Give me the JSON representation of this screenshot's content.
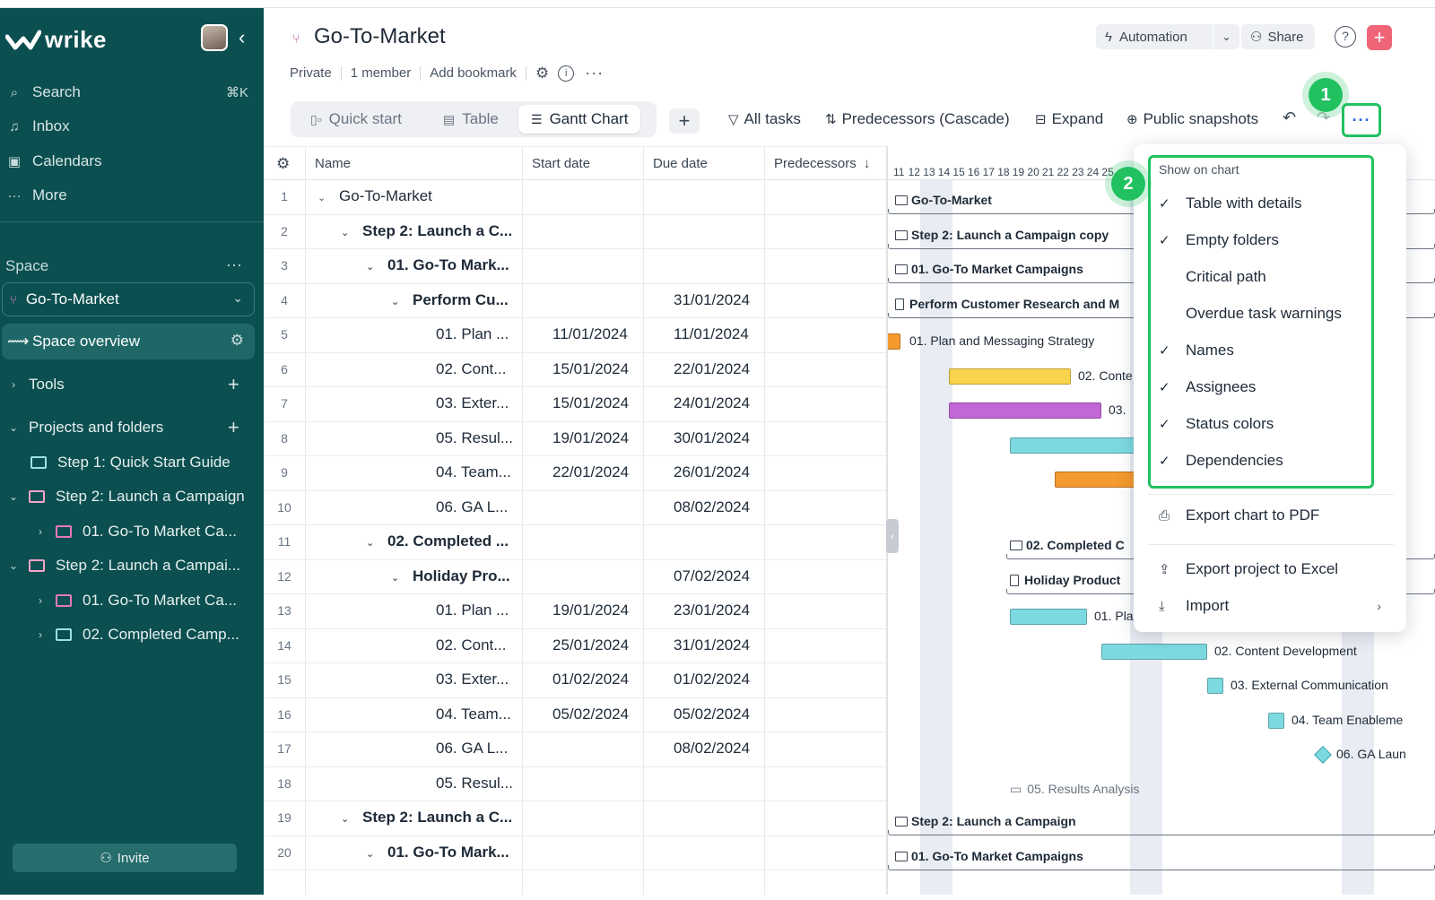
{
  "sidebar": {
    "logo_text": "wrike",
    "nav": [
      {
        "label": "Search",
        "shortcut": "⌘K",
        "icon": "search-icon"
      },
      {
        "label": "Inbox",
        "icon": "bell-icon"
      },
      {
        "label": "Calendars",
        "icon": "calendar-icon"
      },
      {
        "label": "More",
        "icon": "more-dots-icon"
      }
    ],
    "space_label": "Space",
    "space_name": "Go-To-Market",
    "space_overview": "Space overview",
    "tools": "Tools",
    "projects_and_folders": "Projects and folders",
    "tree": [
      "Step 1: Quick Start Guide",
      "Step 2: Launch a Campaign",
      "01. Go-To Market Ca...",
      "Step 2: Launch a Campai...",
      "01. Go-To Market Ca...",
      "02. Completed Camp..."
    ],
    "invite": "Invite"
  },
  "header": {
    "title": "Go-To-Market",
    "privacy": "Private",
    "members": "1 member",
    "bookmark": "Add bookmark",
    "automation": "Automation",
    "share": "Share",
    "help": "?"
  },
  "views": {
    "tabs": [
      "Quick start",
      "Table",
      "Gantt Chart"
    ],
    "active": "Gantt Chart"
  },
  "toolbar": {
    "filter": "All tasks",
    "predecessors": "Predecessors (Cascade)",
    "expand": "Expand",
    "snapshots": "Public snapshots"
  },
  "callouts": [
    "1",
    "2"
  ],
  "table": {
    "columns": [
      "Name",
      "Start date",
      "Due date",
      "Predecessors"
    ],
    "rows": [
      {
        "n": "1",
        "name": "Go-To-Market",
        "start": "",
        "due": "",
        "level": 0,
        "caret": true,
        "bold": false
      },
      {
        "n": "2",
        "name": "Step 2: Launch a C...",
        "start": "",
        "due": "",
        "level": 1,
        "caret": true,
        "bold": true
      },
      {
        "n": "3",
        "name": "01. Go-To Mark...",
        "start": "",
        "due": "",
        "level": 2,
        "caret": true,
        "bold": true
      },
      {
        "n": "4",
        "name": "Perform Cu...",
        "start": "",
        "due": "31/01/2024",
        "level": 3,
        "caret": true,
        "bold": true
      },
      {
        "n": "5",
        "name": "01. Plan ...",
        "start": "11/01/2024",
        "due": "11/01/2024",
        "level": 4,
        "caret": false,
        "bold": false
      },
      {
        "n": "6",
        "name": "02. Cont...",
        "start": "15/01/2024",
        "due": "22/01/2024",
        "level": 4,
        "caret": false,
        "bold": false
      },
      {
        "n": "7",
        "name": "03. Exter...",
        "start": "15/01/2024",
        "due": "24/01/2024",
        "level": 4,
        "caret": false,
        "bold": false
      },
      {
        "n": "8",
        "name": "05. Resul...",
        "start": "19/01/2024",
        "due": "30/01/2024",
        "level": 4,
        "caret": false,
        "bold": false
      },
      {
        "n": "9",
        "name": "04. Team...",
        "start": "22/01/2024",
        "due": "26/01/2024",
        "level": 4,
        "caret": false,
        "bold": false
      },
      {
        "n": "10",
        "name": "06. GA L...",
        "start": "",
        "due": "08/02/2024",
        "level": 4,
        "caret": false,
        "bold": false
      },
      {
        "n": "11",
        "name": "02. Completed ...",
        "start": "",
        "due": "",
        "level": 2,
        "caret": true,
        "bold": true
      },
      {
        "n": "12",
        "name": "Holiday Pro...",
        "start": "",
        "due": "07/02/2024",
        "level": 3,
        "caret": true,
        "bold": true
      },
      {
        "n": "13",
        "name": "01. Plan ...",
        "start": "19/01/2024",
        "due": "23/01/2024",
        "level": 4,
        "caret": false,
        "bold": false
      },
      {
        "n": "14",
        "name": "02. Cont...",
        "start": "25/01/2024",
        "due": "31/01/2024",
        "level": 4,
        "caret": false,
        "bold": false
      },
      {
        "n": "15",
        "name": "03. Exter...",
        "start": "01/02/2024",
        "due": "01/02/2024",
        "level": 4,
        "caret": false,
        "bold": false
      },
      {
        "n": "16",
        "name": "04. Team...",
        "start": "05/02/2024",
        "due": "05/02/2024",
        "level": 4,
        "caret": false,
        "bold": false
      },
      {
        "n": "17",
        "name": "06. GA L...",
        "start": "",
        "due": "08/02/2024",
        "level": 4,
        "caret": false,
        "bold": false
      },
      {
        "n": "18",
        "name": "05. Resul...",
        "start": "",
        "due": "",
        "level": 4,
        "caret": false,
        "bold": false
      },
      {
        "n": "19",
        "name": "Step 2: Launch a C...",
        "start": "",
        "due": "",
        "level": 1,
        "caret": true,
        "bold": true
      },
      {
        "n": "20",
        "name": "01. Go-To Mark...",
        "start": "",
        "due": "",
        "level": 2,
        "caret": true,
        "bold": true
      }
    ]
  },
  "gantt": {
    "days": [
      "11",
      "12",
      "13",
      "14",
      "15",
      "16",
      "17",
      "18",
      "19",
      "20",
      "21",
      "22",
      "23",
      "24",
      "25"
    ],
    "labels": {
      "r1": "Go-To-Market",
      "r2": "Step 2: Launch a Campaign copy",
      "r3": "01. Go-To Market Campaigns",
      "r4": "Perform Customer Research and M",
      "r5": "01. Plan and Messaging Strategy",
      "r6": "02. Conte",
      "r7": "03.",
      "r11": "02. Completed C",
      "r12": "Holiday Product",
      "r13": "01. Pla",
      "r14": "02. Content Development",
      "r15": "03. External Communication",
      "r16": "04. Team Enableme",
      "r17": "06. GA Laun",
      "r18": "05. Results Analysis",
      "r19": "Step 2: Launch a Campaign",
      "r20": "01. Go-To Market Campaigns"
    },
    "colors": {
      "orange": "#f59a2e",
      "yellow": "#f8d44c",
      "purple": "#c366d6",
      "cyan": "#7dd9e0"
    }
  },
  "menu": {
    "section": "Show on chart",
    "options": [
      {
        "label": "Table with details",
        "checked": true
      },
      {
        "label": "Empty folders",
        "checked": true
      },
      {
        "label": "Critical path",
        "checked": false
      },
      {
        "label": "Overdue task warnings",
        "checked": false
      },
      {
        "label": "Names",
        "checked": true
      },
      {
        "label": "Assignees",
        "checked": true
      },
      {
        "label": "Status colors",
        "checked": true
      },
      {
        "label": "Dependencies",
        "checked": true
      }
    ],
    "export_pdf": "Export chart to PDF",
    "export_excel": "Export project to Excel",
    "import": "Import"
  }
}
